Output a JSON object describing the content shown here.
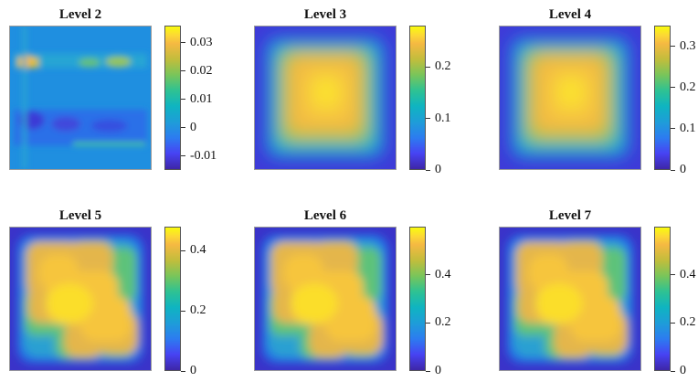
{
  "chart_data": [
    {
      "type": "heatmap",
      "title": "Level 2",
      "pattern": "stripes",
      "colorbar_range": [
        -0.015,
        0.036
      ],
      "colorbar_ticks": [
        {
          "value": 0.03,
          "label": "0.03"
        },
        {
          "value": 0.02,
          "label": "0.02"
        },
        {
          "value": 0.01,
          "label": "0.01"
        },
        {
          "value": 0,
          "label": "0"
        },
        {
          "value": -0.01,
          "label": "-0.01"
        }
      ]
    },
    {
      "type": "heatmap",
      "title": "Level 3",
      "pattern": "square",
      "colorbar_range": [
        0,
        0.28
      ],
      "colorbar_ticks": [
        {
          "value": 0.2,
          "label": "0.2"
        },
        {
          "value": 0.1,
          "label": "0.1"
        },
        {
          "value": 0,
          "label": "0"
        }
      ]
    },
    {
      "type": "heatmap",
      "title": "Level 4",
      "pattern": "square",
      "colorbar_range": [
        0,
        0.35
      ],
      "colorbar_ticks": [
        {
          "value": 0.3,
          "label": "0.3"
        },
        {
          "value": 0.2,
          "label": "0.2"
        },
        {
          "value": 0.1,
          "label": "0.1"
        },
        {
          "value": 0,
          "label": "0"
        }
      ]
    },
    {
      "type": "heatmap",
      "title": "Level 5",
      "pattern": "cross",
      "colorbar_range": [
        0,
        0.48
      ],
      "colorbar_ticks": [
        {
          "value": 0.4,
          "label": "0.4"
        },
        {
          "value": 0.2,
          "label": "0.2"
        },
        {
          "value": 0,
          "label": "0"
        }
      ]
    },
    {
      "type": "heatmap",
      "title": "Level 6",
      "pattern": "cross",
      "colorbar_range": [
        0,
        0.6
      ],
      "colorbar_ticks": [
        {
          "value": 0.4,
          "label": "0.4"
        },
        {
          "value": 0.2,
          "label": "0.2"
        },
        {
          "value": 0,
          "label": "0"
        }
      ]
    },
    {
      "type": "heatmap",
      "title": "Level 7",
      "pattern": "cross",
      "colorbar_range": [
        0,
        0.6
      ],
      "colorbar_ticks": [
        {
          "value": 0.4,
          "label": "0.4"
        },
        {
          "value": 0.2,
          "label": "0.2"
        },
        {
          "value": 0,
          "label": "0"
        }
      ]
    }
  ],
  "colors": {
    "low": "#3e26a8",
    "mid": "#1e9dd8",
    "high": "#f9fb0e",
    "background": "#ffffff"
  },
  "colormap": "parula"
}
